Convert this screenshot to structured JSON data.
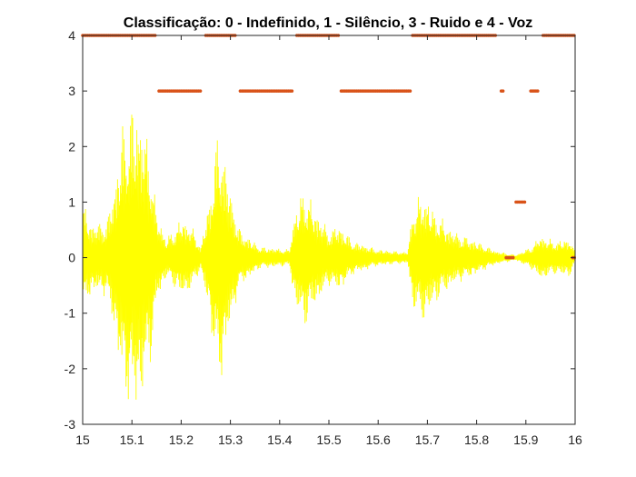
{
  "chart_data": {
    "type": "line+scatter",
    "title": "Classificação: 0 - Indefinido, 1 - Silêncio, 3 - Ruido e 4 - Voz",
    "xlabel": "",
    "ylabel": "",
    "xlim": [
      15,
      16
    ],
    "ylim": [
      -3,
      4
    ],
    "x_ticks": [
      "15",
      "15.1",
      "15.2",
      "15.3",
      "15.4",
      "15.5",
      "15.6",
      "15.7",
      "15.8",
      "15.9",
      "16"
    ],
    "y_ticks": [
      "-3",
      "-2",
      "-1",
      "0",
      "1",
      "2",
      "3",
      "4"
    ],
    "grid": false,
    "series": [
      {
        "kind": "waveform",
        "color": "#FFFF00",
        "envelope": [
          {
            "x": 15.0,
            "amp": 1.0
          },
          {
            "x": 15.02,
            "amp": 0.6
          },
          {
            "x": 15.05,
            "amp": 0.7
          },
          {
            "x": 15.07,
            "amp": 1.6
          },
          {
            "x": 15.08,
            "amp": 2.4
          },
          {
            "x": 15.1,
            "amp": 2.8
          },
          {
            "x": 15.12,
            "amp": 2.6
          },
          {
            "x": 15.14,
            "amp": 1.8
          },
          {
            "x": 15.15,
            "amp": 0.8
          },
          {
            "x": 15.17,
            "amp": 0.35
          },
          {
            "x": 15.2,
            "amp": 0.7
          },
          {
            "x": 15.22,
            "amp": 0.6
          },
          {
            "x": 15.24,
            "amp": 0.2
          },
          {
            "x": 15.26,
            "amp": 1.2
          },
          {
            "x": 15.27,
            "amp": 2.1
          },
          {
            "x": 15.28,
            "amp": 2.3
          },
          {
            "x": 15.3,
            "amp": 1.2
          },
          {
            "x": 15.32,
            "amp": 0.5
          },
          {
            "x": 15.36,
            "amp": 0.2
          },
          {
            "x": 15.42,
            "amp": 0.15
          },
          {
            "x": 15.43,
            "amp": 0.8
          },
          {
            "x": 15.45,
            "amp": 1.3
          },
          {
            "x": 15.47,
            "amp": 0.9
          },
          {
            "x": 15.5,
            "amp": 0.5
          },
          {
            "x": 15.52,
            "amp": 0.6
          },
          {
            "x": 15.55,
            "amp": 0.3
          },
          {
            "x": 15.6,
            "amp": 0.15
          },
          {
            "x": 15.66,
            "amp": 0.1
          },
          {
            "x": 15.67,
            "amp": 0.9
          },
          {
            "x": 15.69,
            "amp": 1.2
          },
          {
            "x": 15.71,
            "amp": 0.9
          },
          {
            "x": 15.75,
            "amp": 0.5
          },
          {
            "x": 15.8,
            "amp": 0.3
          },
          {
            "x": 15.84,
            "amp": 0.12
          },
          {
            "x": 15.88,
            "amp": 0.05
          },
          {
            "x": 15.91,
            "amp": 0.2
          },
          {
            "x": 15.93,
            "amp": 0.4
          },
          {
            "x": 15.96,
            "amp": 0.3
          },
          {
            "x": 15.99,
            "amp": 0.35
          },
          {
            "x": 16.0,
            "amp": 0.1
          }
        ]
      },
      {
        "kind": "classification",
        "color": "#D95319",
        "segments": [
          {
            "x0": 15.0,
            "x1": 15.15,
            "y": 4
          },
          {
            "x0": 15.155,
            "x1": 15.24,
            "y": 3
          },
          {
            "x0": 15.25,
            "x1": 15.31,
            "y": 4
          },
          {
            "x0": 15.32,
            "x1": 15.425,
            "y": 3
          },
          {
            "x0": 15.435,
            "x1": 15.52,
            "y": 4
          },
          {
            "x0": 15.525,
            "x1": 15.665,
            "y": 3
          },
          {
            "x0": 15.67,
            "x1": 15.84,
            "y": 4
          },
          {
            "x0": 15.85,
            "x1": 15.855,
            "y": 3
          },
          {
            "x0": 15.86,
            "x1": 15.875,
            "y": 0
          },
          {
            "x0": 15.88,
            "x1": 15.9,
            "y": 1
          },
          {
            "x0": 15.91,
            "x1": 15.925,
            "y": 3
          },
          {
            "x0": 15.935,
            "x1": 16.0,
            "y": 4
          },
          {
            "x0": 15.995,
            "x1": 16.0,
            "y": 0
          }
        ]
      }
    ]
  }
}
